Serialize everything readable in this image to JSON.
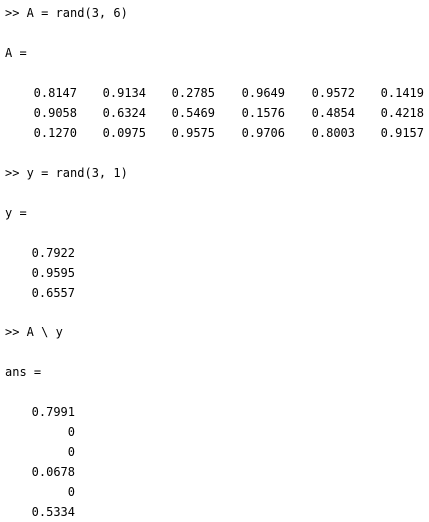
{
  "command1": ">> A = rand(3, 6)",
  "label_a": "A =",
  "matrix_a": [
    [
      "0.8147",
      "0.9134",
      "0.2785",
      "0.9649",
      "0.9572",
      "0.1419"
    ],
    [
      "0.9058",
      "0.6324",
      "0.5469",
      "0.1576",
      "0.4854",
      "0.4218"
    ],
    [
      "0.1270",
      "0.0975",
      "0.9575",
      "0.9706",
      "0.8003",
      "0.9157"
    ]
  ],
  "command2": ">> y = rand(3, 1)",
  "label_y": "y =",
  "vector_y": [
    "0.7922",
    "0.9595",
    "0.6557"
  ],
  "command3": ">> A \\ y",
  "label_ans": "ans =",
  "vector_ans": [
    "0.7991",
    "0",
    "0",
    "0.0678",
    "0",
    "0.5334"
  ]
}
